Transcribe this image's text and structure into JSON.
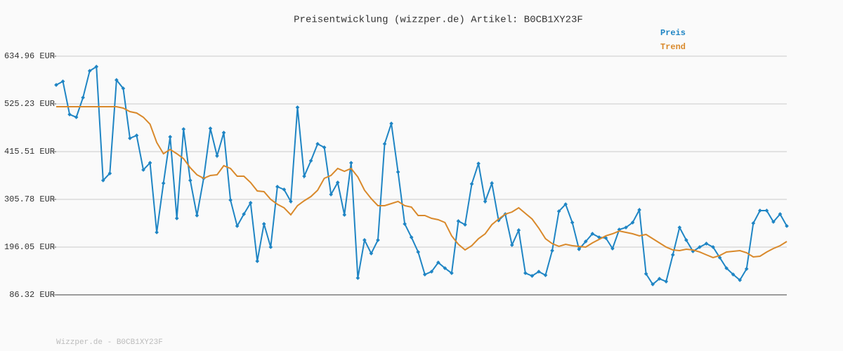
{
  "chart_data": {
    "type": "line",
    "title": "Preisentwicklung (wizzper.de) Artikel: B0CB1XY23F",
    "footer": "Wizzper.de - B0CB1XY23F",
    "legend": "top-right",
    "grid": true,
    "ylim": [
      86.32,
      634.96
    ],
    "yticks": [
      {
        "value": 86.32,
        "label": "86.32 EUR"
      },
      {
        "value": 196.05,
        "label": "196.05 EUR"
      },
      {
        "value": 305.78,
        "label": "305.78 EUR"
      },
      {
        "value": 415.51,
        "label": "415.51 EUR"
      },
      {
        "value": 525.23,
        "label": "525.23 EUR"
      },
      {
        "value": 634.96,
        "label": "634.96 EUR"
      }
    ],
    "series": [
      {
        "name": "Preis",
        "color": "#1f85c4",
        "markers": true,
        "values": [
          568.8,
          576.9,
          501.0,
          494.6,
          539.8,
          601.1,
          610.8,
          349.4,
          365.5,
          580.1,
          560.8,
          446.2,
          452.6,
          373.6,
          389.7,
          230.0,
          342.9,
          449.4,
          262.2,
          467.2,
          349.4,
          268.7,
          354.2,
          468.8,
          405.8,
          459.1,
          304.2,
          244.5,
          271.9,
          297.7,
          163.8,
          249.3,
          196.1,
          334.8,
          328.4,
          301.0,
          517.2,
          359.0,
          394.5,
          433.3,
          425.2,
          317.1,
          344.5,
          270.3,
          389.7,
          125.0,
          212.2,
          181.5,
          212.2,
          433.3,
          480.1,
          368.7,
          249.3,
          218.6,
          184.8,
          133.1,
          139.6,
          160.6,
          147.6,
          136.3,
          255.8,
          247.7,
          341.3,
          388.1,
          301.0,
          342.9,
          257.4,
          271.9,
          200.9,
          234.8,
          136.3,
          129.9,
          139.6,
          131.5,
          188.0,
          278.4,
          294.5,
          252.5,
          191.2,
          209.0,
          226.7,
          218.6,
          217.0,
          192.8,
          236.4,
          241.2,
          252.5,
          281.6,
          134.7,
          110.5,
          123.4,
          117.0,
          178.3,
          241.2,
          212.2,
          186.4,
          196.1,
          204.1,
          196.1,
          171.9,
          147.6,
          133.1,
          120.2,
          146.0,
          250.9,
          280.0,
          280.0,
          254.1,
          271.9,
          244.5
        ]
      },
      {
        "name": "Trend",
        "color": "#d9892b",
        "markers": false,
        "values": [
          518.8,
          518.8,
          518.8,
          518.8,
          518.8,
          518.8,
          518.8,
          518.8,
          518.8,
          518.8,
          515.6,
          507.5,
          504.3,
          494.6,
          478.5,
          436.5,
          410.7,
          420.4,
          410.7,
          399.4,
          378.4,
          362.3,
          354.2,
          360.7,
          362.3,
          383.2,
          376.8,
          359.0,
          359.0,
          344.5,
          325.1,
          323.5,
          305.8,
          294.5,
          286.4,
          270.3,
          291.3,
          302.6,
          312.2,
          326.8,
          354.2,
          360.7,
          376.8,
          370.3,
          376.8,
          357.4,
          326.8,
          307.4,
          291.3,
          291.3,
          296.1,
          301.0,
          291.3,
          288.0,
          268.7,
          268.7,
          262.2,
          259.0,
          252.5,
          221.9,
          202.5,
          189.6,
          199.3,
          215.4,
          226.7,
          247.7,
          260.6,
          271.9,
          276.7,
          286.4,
          273.5,
          260.6,
          239.6,
          215.4,
          204.1,
          197.7,
          202.5,
          199.3,
          197.7,
          196.1,
          205.7,
          213.8,
          221.9,
          226.7,
          233.1,
          229.9,
          226.7,
          221.9,
          225.1,
          215.4,
          205.7,
          196.1,
          189.6,
          188.0,
          191.2,
          189.6,
          184.8,
          178.3,
          171.9,
          176.7,
          184.8,
          186.4,
          188.0,
          183.1,
          173.5,
          175.1,
          184.8,
          192.8,
          199.3,
          209.0
        ]
      }
    ]
  }
}
